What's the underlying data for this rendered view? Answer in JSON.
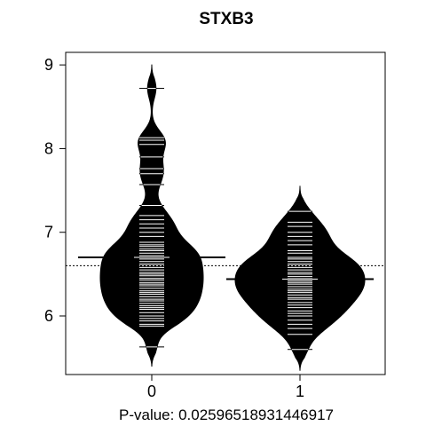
{
  "chart_data": {
    "type": "beanplot",
    "title": "STXB3",
    "xlabel": "P-value: 0.02596518931446917",
    "ylabel": "",
    "categories": [
      "0",
      "1"
    ],
    "yticks": [
      6,
      7,
      8,
      9
    ],
    "ylim": [
      5.3,
      9.15
    ],
    "overall_mean": 6.6,
    "grid": false,
    "series": [
      {
        "category": "0",
        "mean": 6.7,
        "density_peak": 6.5,
        "range": [
          5.4,
          9.0
        ],
        "observations": [
          5.63,
          5.88,
          5.9,
          5.94,
          5.97,
          6.0,
          6.04,
          6.08,
          6.1,
          6.12,
          6.15,
          6.18,
          6.2,
          6.23,
          6.26,
          6.28,
          6.3,
          6.33,
          6.36,
          6.38,
          6.4,
          6.43,
          6.45,
          6.48,
          6.5,
          6.52,
          6.55,
          6.58,
          6.6,
          6.62,
          6.65,
          6.68,
          6.7,
          6.72,
          6.75,
          6.78,
          6.8,
          6.83,
          6.85,
          6.88,
          6.95,
          7.0,
          7.05,
          7.1,
          7.15,
          7.2,
          7.32,
          7.57,
          7.7,
          7.76,
          7.9,
          8.05,
          8.1,
          8.13,
          8.72
        ]
      },
      {
        "category": "1",
        "mean": 6.44,
        "density_peak": 6.45,
        "range": [
          5.35,
          7.55
        ],
        "observations": [
          5.6,
          5.78,
          5.85,
          5.9,
          5.95,
          6.0,
          6.03,
          6.06,
          6.1,
          6.13,
          6.16,
          6.2,
          6.22,
          6.25,
          6.28,
          6.3,
          6.32,
          6.35,
          6.38,
          6.4,
          6.42,
          6.45,
          6.47,
          6.5,
          6.52,
          6.55,
          6.58,
          6.6,
          6.62,
          6.65,
          6.68,
          6.7,
          6.75,
          6.78,
          6.85,
          6.9,
          6.95,
          7.0,
          7.07,
          7.12,
          7.25
        ]
      }
    ]
  }
}
